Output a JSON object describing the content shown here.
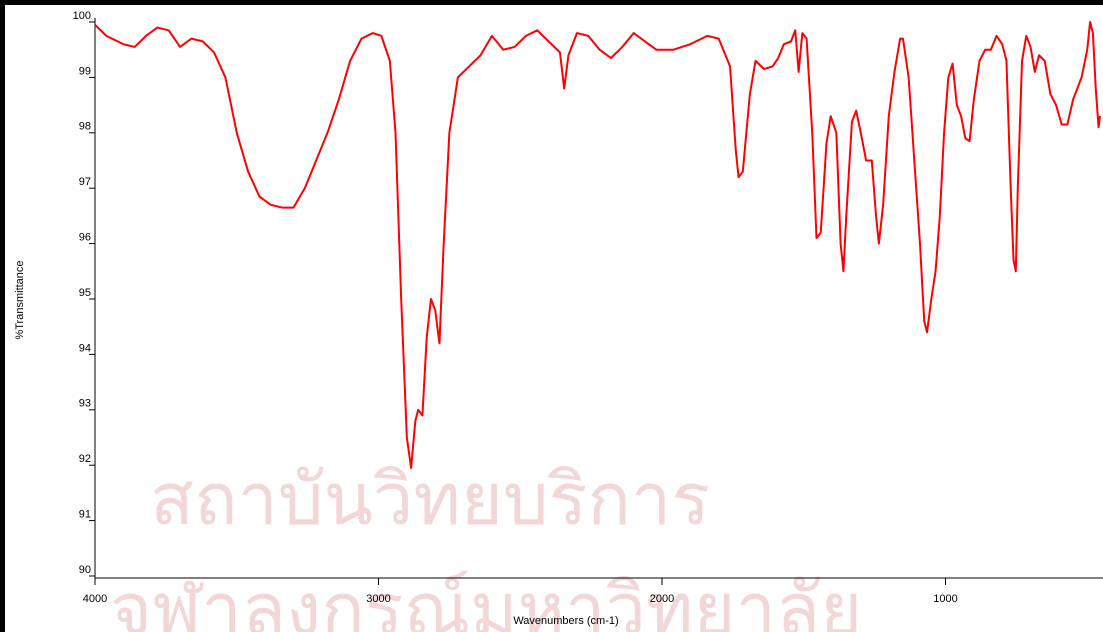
{
  "chart_data": {
    "type": "line",
    "x_label": "Wavenumbers (cm-1)",
    "y_label": "%Transmittance",
    "annotations": [
      "สถาบันวิทยบริการ",
      "จุฬาลงกรณ์มหาวิทยาลัย"
    ],
    "color": "#ff0000",
    "x": [
      4000,
      3960,
      3900,
      3860,
      3820,
      3780,
      3740,
      3700,
      3660,
      3620,
      3580,
      3540,
      3500,
      3460,
      3420,
      3380,
      3340,
      3300,
      3260,
      3220,
      3180,
      3140,
      3100,
      3060,
      3020,
      2990,
      2960,
      2940,
      2920,
      2900,
      2885,
      2870,
      2860,
      2845,
      2830,
      2815,
      2800,
      2785,
      2770,
      2750,
      2720,
      2680,
      2640,
      2600,
      2560,
      2520,
      2480,
      2440,
      2400,
      2360,
      2345,
      2330,
      2300,
      2260,
      2220,
      2180,
      2140,
      2100,
      2060,
      2020,
      1960,
      1900,
      1840,
      1800,
      1760,
      1740,
      1730,
      1715,
      1690,
      1670,
      1640,
      1610,
      1590,
      1570,
      1545,
      1530,
      1518,
      1505,
      1490,
      1470,
      1455,
      1440,
      1420,
      1405,
      1385,
      1370,
      1360,
      1350,
      1330,
      1315,
      1295,
      1280,
      1260,
      1245,
      1235,
      1220,
      1200,
      1180,
      1160,
      1150,
      1130,
      1110,
      1090,
      1075,
      1065,
      1050,
      1035,
      1020,
      1005,
      990,
      975,
      960,
      945,
      930,
      915,
      900,
      880,
      860,
      840,
      820,
      800,
      785,
      770,
      760,
      752,
      745,
      730,
      715,
      700,
      685,
      670,
      650,
      630,
      610,
      590,
      570,
      550,
      520,
      500,
      490,
      480,
      470,
      460,
      455
    ],
    "values": [
      99.95,
      99.75,
      99.6,
      99.55,
      99.75,
      99.9,
      99.85,
      99.55,
      99.7,
      99.65,
      99.45,
      99.0,
      98.0,
      97.3,
      96.85,
      96.7,
      96.65,
      96.65,
      97.0,
      97.5,
      98.0,
      98.6,
      99.3,
      99.7,
      99.8,
      99.75,
      99.3,
      98.0,
      95.0,
      92.5,
      91.95,
      92.8,
      93.0,
      92.9,
      94.3,
      95.0,
      94.8,
      94.2,
      96.0,
      98.0,
      99.0,
      99.2,
      99.4,
      99.75,
      99.5,
      99.55,
      99.75,
      99.85,
      99.65,
      99.45,
      98.8,
      99.4,
      99.8,
      99.75,
      99.5,
      99.35,
      99.55,
      99.8,
      99.65,
      99.5,
      99.5,
      99.6,
      99.75,
      99.7,
      99.2,
      97.7,
      97.2,
      97.3,
      98.7,
      99.3,
      99.15,
      99.2,
      99.35,
      99.6,
      99.65,
      99.85,
      99.1,
      99.8,
      99.7,
      98.0,
      96.1,
      96.2,
      97.8,
      98.3,
      98.0,
      96.0,
      95.5,
      96.5,
      98.2,
      98.4,
      97.9,
      97.5,
      97.5,
      96.5,
      96.0,
      96.7,
      98.3,
      99.1,
      99.7,
      99.7,
      99.0,
      97.5,
      96.0,
      94.6,
      94.4,
      95.0,
      95.5,
      96.5,
      98.0,
      99.0,
      99.25,
      98.5,
      98.3,
      97.9,
      97.85,
      98.6,
      99.3,
      99.5,
      99.5,
      99.75,
      99.6,
      99.3,
      97.0,
      95.7,
      95.5,
      97.0,
      99.3,
      99.75,
      99.55,
      99.1,
      99.4,
      99.3,
      98.7,
      98.5,
      98.15,
      98.15,
      98.6,
      99.0,
      99.5,
      100.0,
      99.8,
      98.8,
      98.1,
      98.3
    ],
    "xlim": [
      4000,
      455
    ],
    "xticks": [
      4000,
      3000,
      2000,
      1000
    ],
    "ylim": [
      90,
      100
    ],
    "yticks": [
      90,
      91,
      92,
      93,
      94,
      95,
      96,
      97,
      98,
      99,
      100
    ]
  }
}
